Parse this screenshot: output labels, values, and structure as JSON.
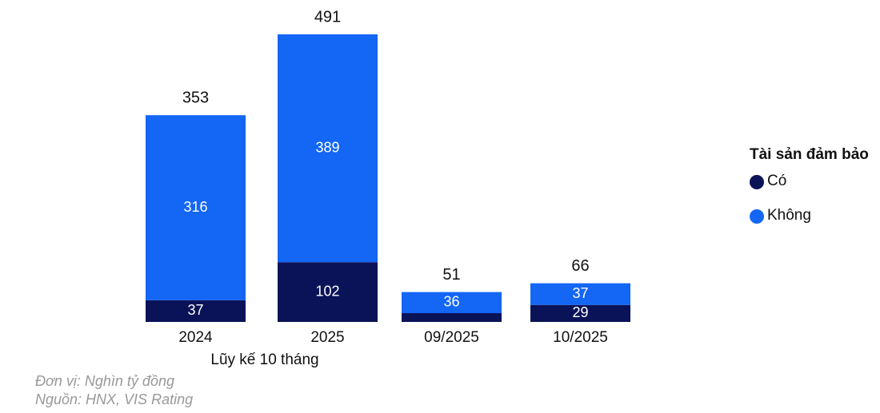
{
  "chart_data": {
    "type": "stacked-bar",
    "categories": [
      "2024",
      "2025",
      "09/2025",
      "10/2025"
    ],
    "group_label": "Lũy kế 10 tháng",
    "series": [
      {
        "name": "Có",
        "color": "#0b1358",
        "values": [
          37,
          102,
          15,
          29
        ],
        "value_labels": [
          "37",
          "102",
          null,
          "29"
        ]
      },
      {
        "name": "Không",
        "color": "#1466f5",
        "values": [
          316,
          389,
          36,
          37
        ]
      }
    ],
    "totals": [
      353,
      491,
      51,
      66
    ],
    "legend_title": "Tài sản đảm bảo",
    "legend": "right",
    "notes": [
      "Đơn vị: Nghìn tỷ đồng",
      "Nguồn: HNX, VIS Rating"
    ]
  }
}
